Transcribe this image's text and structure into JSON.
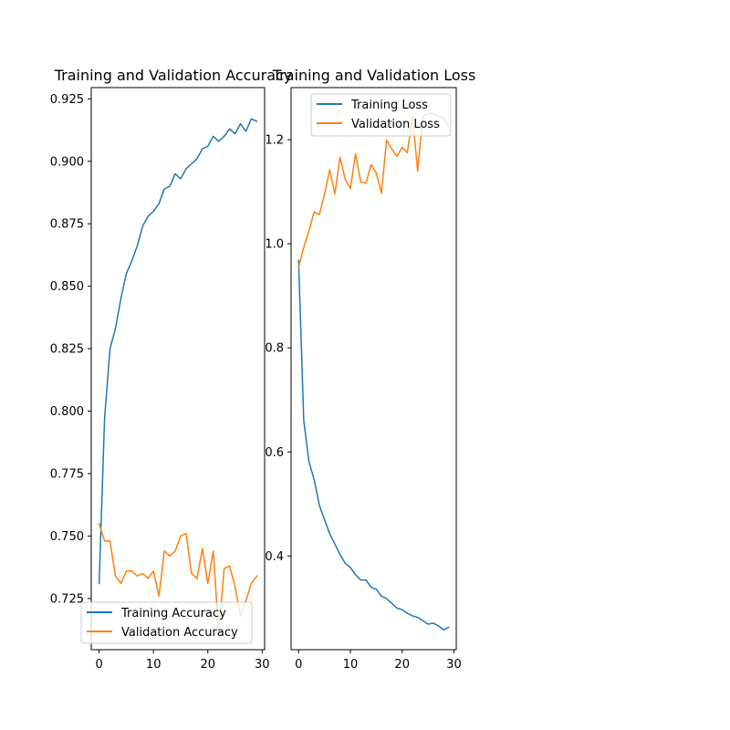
{
  "chart_data": [
    {
      "type": "line",
      "title": "Training and Validation Accuracy",
      "xlabel": "",
      "ylabel": "",
      "xlim": [
        -1.45,
        30.45
      ],
      "ylim": [
        0.7045,
        0.9295
      ],
      "xticks": [
        0,
        10,
        20,
        30
      ],
      "yticks": [
        0.725,
        0.75,
        0.775,
        0.8,
        0.825,
        0.85,
        0.875,
        0.9,
        0.925
      ],
      "ytick_labels": [
        "0.725",
        "0.750",
        "0.775",
        "0.800",
        "0.825",
        "0.850",
        "0.875",
        "0.900",
        "0.925"
      ],
      "grid": false,
      "legend_position": "lower-left",
      "x": [
        0,
        1,
        2,
        3,
        4,
        5,
        6,
        7,
        8,
        9,
        10,
        11,
        12,
        13,
        14,
        15,
        16,
        17,
        18,
        19,
        20,
        21,
        22,
        23,
        24,
        25,
        26,
        27,
        28,
        29
      ],
      "series": [
        {
          "name": "Training Accuracy",
          "color": "#1f77b4",
          "values": [
            0.731,
            0.797,
            0.825,
            0.833,
            0.845,
            0.855,
            0.86,
            0.866,
            0.874,
            0.878,
            0.88,
            0.883,
            0.889,
            0.89,
            0.895,
            0.893,
            0.897,
            0.899,
            0.901,
            0.905,
            0.906,
            0.91,
            0.908,
            0.91,
            0.913,
            0.911,
            0.915,
            0.912,
            0.917,
            0.916
          ]
        },
        {
          "name": "Validation Accuracy",
          "color": "#ff7f0e",
          "values": [
            0.755,
            0.748,
            0.748,
            0.734,
            0.731,
            0.736,
            0.736,
            0.734,
            0.735,
            0.733,
            0.736,
            0.726,
            0.744,
            0.742,
            0.744,
            0.75,
            0.751,
            0.735,
            0.733,
            0.745,
            0.731,
            0.744,
            0.711,
            0.737,
            0.738,
            0.73,
            0.718,
            0.724,
            0.731,
            0.734
          ]
        }
      ]
    },
    {
      "type": "line",
      "title": "Training and Validation Loss",
      "xlabel": "",
      "ylabel": "",
      "xlim": [
        -1.45,
        30.45
      ],
      "ylim": [
        0.22,
        1.3
      ],
      "xticks": [
        0,
        10,
        20,
        30
      ],
      "yticks": [
        0.4,
        0.6,
        0.8,
        1.0,
        1.2
      ],
      "ytick_labels": [
        "0.4",
        "0.6",
        "0.8",
        "1.0",
        "1.2"
      ],
      "grid": false,
      "legend_position": "upper-right",
      "x": [
        0,
        1,
        2,
        3,
        4,
        5,
        6,
        7,
        8,
        9,
        10,
        11,
        12,
        13,
        14,
        15,
        16,
        17,
        18,
        19,
        20,
        21,
        22,
        23,
        24,
        25,
        26,
        27,
        28,
        29
      ],
      "series": [
        {
          "name": "Training Loss",
          "color": "#1f77b4",
          "values": [
            0.968,
            0.66,
            0.581,
            0.547,
            0.498,
            0.47,
            0.443,
            0.423,
            0.403,
            0.386,
            0.378,
            0.364,
            0.354,
            0.354,
            0.34,
            0.336,
            0.323,
            0.318,
            0.309,
            0.3,
            0.297,
            0.29,
            0.285,
            0.282,
            0.276,
            0.269,
            0.271,
            0.266,
            0.258,
            0.263
          ]
        },
        {
          "name": "Validation Loss",
          "color": "#ff7f0e",
          "values": [
            0.955,
            0.993,
            1.025,
            1.061,
            1.056,
            1.094,
            1.142,
            1.096,
            1.166,
            1.124,
            1.106,
            1.173,
            1.119,
            1.116,
            1.152,
            1.136,
            1.097,
            1.199,
            1.182,
            1.168,
            1.185,
            1.175,
            1.245,
            1.14,
            1.245,
            1.25,
            1.25,
            1.245,
            1.242,
            1.225
          ]
        }
      ]
    }
  ]
}
